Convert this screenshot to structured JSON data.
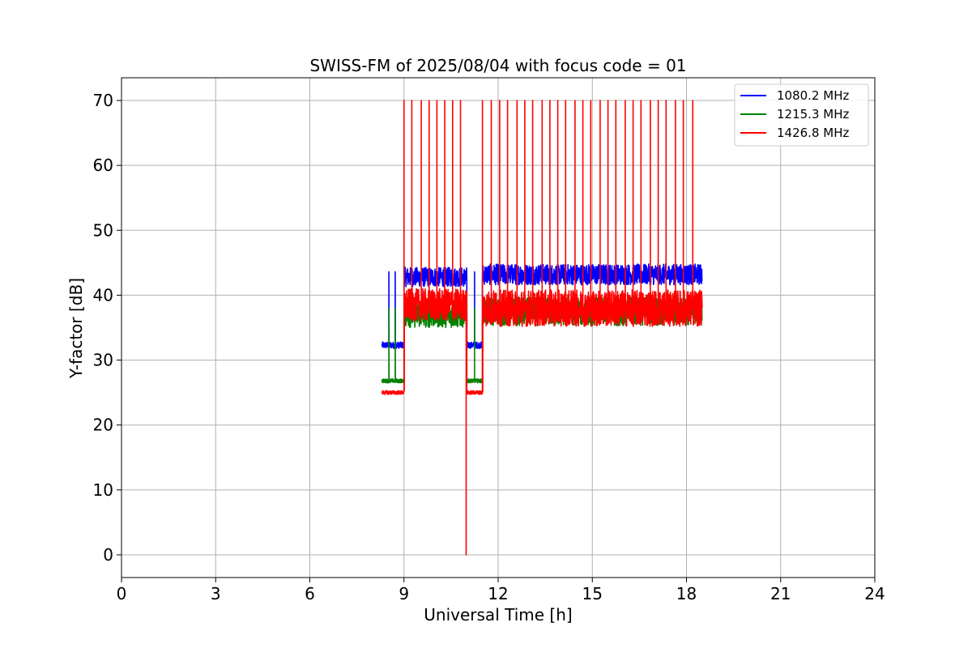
{
  "chart_data": {
    "type": "line",
    "title": "SWISS-FM of 2025/08/04 with focus code = 01",
    "xlabel": "Universal Time [h]",
    "ylabel": "Y-factor [dB]",
    "xlim": [
      0,
      24
    ],
    "ylim": [
      -3.5,
      73.5
    ],
    "xticks": [
      0,
      3,
      6,
      9,
      12,
      15,
      18,
      21,
      24
    ],
    "yticks": [
      0,
      10,
      20,
      30,
      40,
      50,
      60,
      70
    ],
    "xtick_labels": [
      "0",
      "3",
      "6",
      "9",
      "12",
      "15",
      "18",
      "21",
      "24"
    ],
    "ytick_labels": [
      "0",
      "10",
      "20",
      "30",
      "40",
      "50",
      "60",
      "70"
    ],
    "grid": true,
    "legend_position": "top-right",
    "series": [
      {
        "name": "1080.2 MHz",
        "color": "#0000ff",
        "segments": [
          {
            "x0": 8.3,
            "x1": 9.0,
            "base": 32.3,
            "noise": 0.5
          },
          {
            "x0": 9.0,
            "x1": 11.0,
            "base": 42.8,
            "noise": 1.5
          },
          {
            "x0": 11.0,
            "x1": 11.5,
            "base": 32.3,
            "noise": 0.5
          },
          {
            "x0": 11.5,
            "x1": 18.5,
            "base": 43.2,
            "noise": 1.6
          }
        ],
        "spikes": [
          {
            "x": 8.52,
            "y": 43.6
          },
          {
            "x": 8.72,
            "y": 43.6
          },
          {
            "x": 11.25,
            "y": 43.6
          }
        ]
      },
      {
        "name": "1215.3 MHz",
        "color": "#008000",
        "segments": [
          {
            "x0": 8.3,
            "x1": 9.0,
            "base": 26.8,
            "noise": 0.3
          },
          {
            "x0": 9.0,
            "x1": 11.0,
            "base": 37.0,
            "noise": 2.0
          },
          {
            "x0": 11.0,
            "x1": 11.5,
            "base": 26.8,
            "noise": 0.3
          },
          {
            "x0": 11.5,
            "x1": 18.5,
            "base": 37.5,
            "noise": 2.2
          }
        ],
        "spikes": [
          {
            "x": 8.52,
            "y": 38.0
          },
          {
            "x": 8.72,
            "y": 38.0
          },
          {
            "x": 11.25,
            "y": 38.0
          }
        ]
      },
      {
        "name": "1426.8 MHz",
        "color": "#ff0000",
        "segments": [
          {
            "x0": 8.3,
            "x1": 9.0,
            "base": 25.0,
            "noise": 0.3
          },
          {
            "x0": 9.0,
            "x1": 11.0,
            "base": 38.5,
            "noise": 2.5
          },
          {
            "x0": 11.0,
            "x1": 11.5,
            "base": 25.0,
            "noise": 0.3
          },
          {
            "x0": 11.5,
            "x1": 18.5,
            "base": 38.0,
            "noise": 2.8
          }
        ],
        "spikes": [
          {
            "x": 9.0,
            "y": 70
          },
          {
            "x": 9.25,
            "y": 70
          },
          {
            "x": 9.55,
            "y": 70
          },
          {
            "x": 9.8,
            "y": 70
          },
          {
            "x": 10.05,
            "y": 70
          },
          {
            "x": 10.3,
            "y": 70
          },
          {
            "x": 10.55,
            "y": 70
          },
          {
            "x": 10.8,
            "y": 70
          },
          {
            "x": 10.98,
            "y": 0
          },
          {
            "x": 11.5,
            "y": 70
          },
          {
            "x": 11.78,
            "y": 70
          },
          {
            "x": 12.05,
            "y": 70
          },
          {
            "x": 12.3,
            "y": 70
          },
          {
            "x": 12.6,
            "y": 70
          },
          {
            "x": 12.85,
            "y": 70
          },
          {
            "x": 13.1,
            "y": 70
          },
          {
            "x": 13.4,
            "y": 70
          },
          {
            "x": 13.65,
            "y": 70
          },
          {
            "x": 13.9,
            "y": 70
          },
          {
            "x": 14.15,
            "y": 70
          },
          {
            "x": 14.45,
            "y": 70
          },
          {
            "x": 14.7,
            "y": 70
          },
          {
            "x": 14.95,
            "y": 70
          },
          {
            "x": 15.25,
            "y": 70
          },
          {
            "x": 15.5,
            "y": 70
          },
          {
            "x": 15.75,
            "y": 70
          },
          {
            "x": 16.05,
            "y": 70
          },
          {
            "x": 16.3,
            "y": 70
          },
          {
            "x": 16.55,
            "y": 70
          },
          {
            "x": 16.85,
            "y": 70
          },
          {
            "x": 17.1,
            "y": 70
          },
          {
            "x": 17.35,
            "y": 70
          },
          {
            "x": 17.65,
            "y": 70
          },
          {
            "x": 17.9,
            "y": 70
          },
          {
            "x": 18.2,
            "y": 70
          }
        ]
      }
    ]
  }
}
